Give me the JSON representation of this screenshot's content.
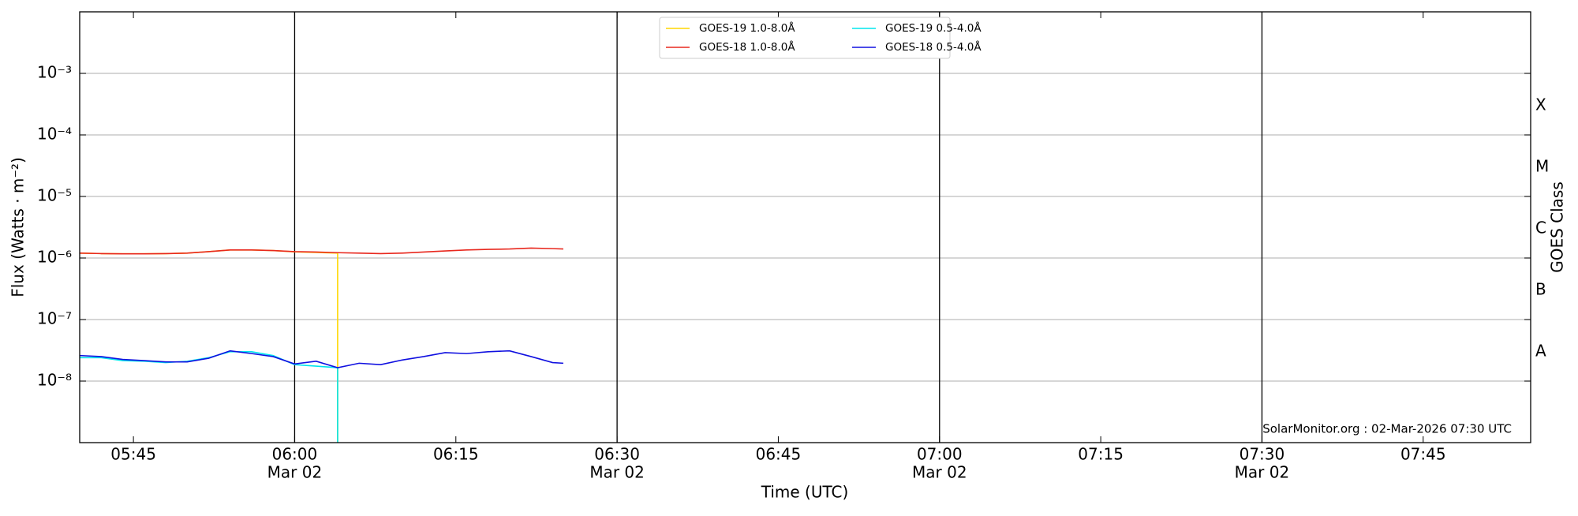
{
  "chart_data": {
    "type": "line",
    "log_scale": true,
    "xlabel": "Time (UTC)",
    "ylabel": "Flux (Watts · m⁻²)",
    "y2label": "GOES Class",
    "footer": "SolarMonitor.org : 02-Mar-2026 07:30 UTC",
    "legend": "upper center",
    "grid": true,
    "xlim": [
      "05:40",
      "07:55"
    ],
    "xticks": [
      "05:45",
      "06:00",
      "06:15",
      "06:30",
      "06:45",
      "07:00",
      "07:15",
      "07:30",
      "07:45"
    ],
    "xtick_dates": [
      null,
      "Mar 02",
      null,
      "Mar 02",
      null,
      "Mar 02",
      null,
      "Mar 02",
      null
    ],
    "ylim": [
      1e-09,
      0.01
    ],
    "yticks": [
      {
        "value": 1e-08,
        "label": "10⁻⁸"
      },
      {
        "value": 1e-07,
        "label": "10⁻⁷"
      },
      {
        "value": 1e-06,
        "label": "10⁻⁶"
      },
      {
        "value": 1e-05,
        "label": "10⁻⁵"
      },
      {
        "value": 0.0001,
        "label": "10⁻⁴"
      },
      {
        "value": 0.001,
        "label": "10⁻³"
      }
    ],
    "class_labels": [
      {
        "value": 3e-08,
        "label": "A"
      },
      {
        "value": 3e-07,
        "label": "B"
      },
      {
        "value": 3e-06,
        "label": "C"
      },
      {
        "value": 3e-05,
        "label": "M"
      },
      {
        "value": 0.0003,
        "label": "X"
      }
    ],
    "series": [
      {
        "name": "GOES-19 1.0-8.0Å",
        "color": "#ffd700",
        "x": [
          "05:40",
          "05:42",
          "05:44",
          "05:46",
          "05:48",
          "05:50",
          "05:52",
          "05:54",
          "05:56",
          "05:58",
          "06:00",
          "06:02",
          "06:04",
          "06:04"
        ],
        "values": [
          1.2e-06,
          1.18e-06,
          1.17e-06,
          1.17e-06,
          1.18e-06,
          1.2e-06,
          1.27e-06,
          1.35e-06,
          1.35e-06,
          1.32e-06,
          1.26e-06,
          1.23e-06,
          1.2e-06,
          1e-09
        ]
      },
      {
        "name": "GOES-18 1.0-8.0Å",
        "color": "#e8281e",
        "x": [
          "05:40",
          "05:42",
          "05:44",
          "05:46",
          "05:48",
          "05:50",
          "05:52",
          "05:54",
          "05:56",
          "05:58",
          "06:00",
          "06:02",
          "06:04",
          "06:06",
          "06:08",
          "06:10",
          "06:12",
          "06:14",
          "06:16",
          "06:18",
          "06:20",
          "06:22",
          "06:24",
          "06:25"
        ],
        "values": [
          1.2e-06,
          1.18e-06,
          1.17e-06,
          1.17e-06,
          1.18e-06,
          1.2e-06,
          1.27e-06,
          1.35e-06,
          1.35e-06,
          1.32e-06,
          1.27e-06,
          1.25e-06,
          1.22e-06,
          1.2e-06,
          1.18e-06,
          1.2e-06,
          1.25e-06,
          1.3e-06,
          1.35e-06,
          1.38e-06,
          1.4e-06,
          1.45e-06,
          1.42e-06,
          1.4e-06
        ]
      },
      {
        "name": "GOES-19 0.5-4.0Å",
        "color": "#00e5ee",
        "x": [
          "05:40",
          "05:42",
          "05:44",
          "05:46",
          "05:48",
          "05:50",
          "05:52",
          "05:54",
          "05:56",
          "05:58",
          "06:00",
          "06:02",
          "06:04",
          "06:04"
        ],
        "values": [
          2.4e-08,
          2.4e-08,
          2.15e-08,
          2.1e-08,
          2e-08,
          2.1e-08,
          2.4e-08,
          3e-08,
          3e-08,
          2.6e-08,
          1.85e-08,
          1.75e-08,
          1.65e-08,
          1e-09
        ]
      },
      {
        "name": "GOES-18 0.5-4.0Å",
        "color": "#1010e0",
        "x": [
          "05:40",
          "05:42",
          "05:44",
          "05:46",
          "05:48",
          "05:50",
          "05:52",
          "05:54",
          "05:56",
          "05:58",
          "06:00",
          "06:02",
          "06:04",
          "06:06",
          "06:08",
          "06:10",
          "06:12",
          "06:14",
          "06:16",
          "06:18",
          "06:20",
          "06:22",
          "06:24",
          "06:25"
        ],
        "values": [
          2.6e-08,
          2.5e-08,
          2.25e-08,
          2.15e-08,
          2.05e-08,
          2.05e-08,
          2.35e-08,
          3.1e-08,
          2.8e-08,
          2.5e-08,
          1.9e-08,
          2.1e-08,
          1.65e-08,
          1.95e-08,
          1.85e-08,
          2.2e-08,
          2.5e-08,
          2.9e-08,
          2.8e-08,
          3e-08,
          3.1e-08,
          2.5e-08,
          2e-08,
          1.95e-08
        ]
      }
    ]
  }
}
